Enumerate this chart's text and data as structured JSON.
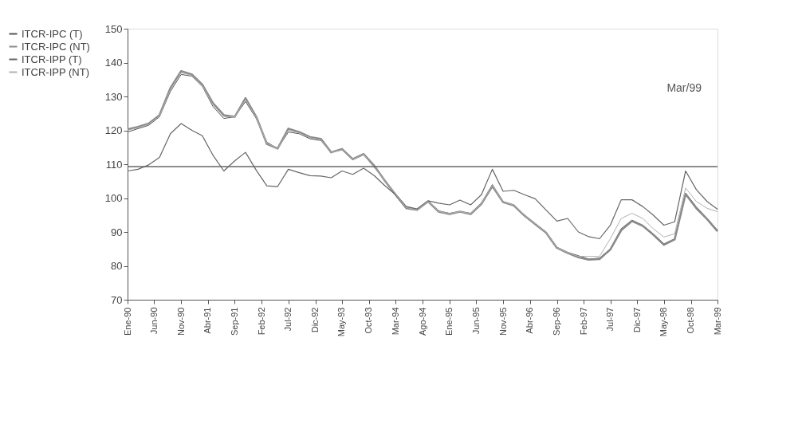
{
  "chart_data": {
    "type": "line",
    "x": [
      "1990-01",
      "1990-03",
      "1990-05",
      "1990-07",
      "1990-09",
      "1990-11",
      "1991-01",
      "1991-03",
      "1991-05",
      "1991-07",
      "1991-09",
      "1991-11",
      "1992-01",
      "1992-03",
      "1992-05",
      "1992-07",
      "1992-09",
      "1992-11",
      "1993-01",
      "1993-03",
      "1993-05",
      "1993-07",
      "1993-09",
      "1993-11",
      "1994-01",
      "1994-03",
      "1994-05",
      "1994-07",
      "1994-09",
      "1994-11",
      "1995-01",
      "1995-03",
      "1995-05",
      "1995-07",
      "1995-09",
      "1995-11",
      "1996-01",
      "1996-03",
      "1996-05",
      "1996-07",
      "1996-09",
      "1996-11",
      "1997-01",
      "1997-03",
      "1997-05",
      "1997-07",
      "1997-09",
      "1997-11",
      "1998-01",
      "1998-03",
      "1998-05",
      "1998-07",
      "1998-09",
      "1998-11",
      "1999-01",
      "1999-03"
    ],
    "series": [
      {
        "name": "ITCR-IPC (T)",
        "color": "#555555",
        "values": [
          119.5,
          120.5,
          121.5,
          124,
          131.5,
          136.5,
          136,
          133,
          127,
          123.5,
          124,
          128.5,
          123.5,
          116.5,
          114.6,
          119.5,
          119,
          117.5,
          117,
          113.5,
          114.2,
          111.3,
          112.8,
          109,
          105.2,
          101.3,
          97.5,
          96.5,
          99,
          96.2,
          95.5,
          96,
          95.5,
          98.5,
          104,
          99,
          98,
          95,
          92.5,
          90,
          85.5,
          84,
          83,
          82,
          82.3,
          85,
          91,
          93.5,
          92,
          89.5,
          86.5,
          88,
          101.5,
          97.4,
          94,
          90.5
        ]
      },
      {
        "name": "ITCR-IPC (NT)",
        "color": "#8a8a8a",
        "values": [
          120.3,
          121,
          122,
          124.5,
          132.5,
          137.5,
          136.5,
          133.5,
          128,
          124.5,
          124,
          129.5,
          124,
          116,
          114.6,
          120.5,
          119.5,
          118,
          117.5,
          113.5,
          114.5,
          111.5,
          113,
          109.5,
          105,
          101,
          97,
          96.5,
          99,
          96,
          95.3,
          96,
          95.3,
          98.3,
          103.5,
          98.8,
          97.8,
          94.8,
          92.3,
          89.8,
          85.3,
          83.8,
          82.5,
          81.8,
          82,
          84.8,
          90.5,
          93.2,
          91.8,
          89.2,
          86.2,
          87.8,
          101.2,
          97,
          93.8,
          90.2
        ]
      },
      {
        "name": "ITCR-IPP (T)",
        "color": "#666666",
        "values": [
          108,
          108.5,
          109.8,
          112,
          119,
          122,
          120,
          118.4,
          112.6,
          108,
          111,
          113.5,
          108.2,
          103.6,
          103.4,
          108.5,
          107.5,
          106.6,
          106.5,
          106,
          108,
          107,
          108.8,
          106.6,
          103.6,
          101,
          97.5,
          96.8,
          99.2,
          98.5,
          98,
          99.4,
          98,
          101,
          108.5,
          102,
          102.3,
          101,
          99.8,
          96.5,
          93.2,
          94,
          90,
          88.6,
          88,
          92,
          99.5,
          99.5,
          97.5,
          95,
          92,
          93,
          108,
          102.5,
          99,
          96.7
        ]
      },
      {
        "name": "ITCR-IPP (NT)",
        "color": "#b0b0b0",
        "values": [
          120,
          120.8,
          121.8,
          124.2,
          132,
          137,
          136.2,
          133.2,
          127.5,
          124,
          124,
          129,
          123.8,
          116.2,
          114.6,
          120,
          119.2,
          117.8,
          117.2,
          113.5,
          114.3,
          111.4,
          112.9,
          109.2,
          105.1,
          101.2,
          97.2,
          96.5,
          99,
          96.1,
          95.4,
          96,
          95.4,
          98.4,
          103.8,
          98.9,
          97.9,
          94.9,
          92.4,
          89.9,
          85.4,
          83.9,
          82.8,
          82.8,
          82.8,
          88,
          94,
          95.5,
          94,
          91,
          88.5,
          89.5,
          103,
          99,
          97,
          96
        ]
      }
    ],
    "ylim": [
      70,
      150
    ],
    "yticks": [
      70,
      80,
      90,
      100,
      110,
      120,
      130,
      140,
      150
    ],
    "xlim": [
      "1990-01",
      "1999-03"
    ],
    "xticks": [
      {
        "value": "1990-01",
        "label": "Ene-90"
      },
      {
        "value": "1990-06",
        "label": "Jun-90"
      },
      {
        "value": "1990-11",
        "label": "Nov-90"
      },
      {
        "value": "1991-04",
        "label": "Abr-91"
      },
      {
        "value": "1991-09",
        "label": "Sep-91"
      },
      {
        "value": "1992-02",
        "label": "Feb-92"
      },
      {
        "value": "1992-07",
        "label": "Jul-92"
      },
      {
        "value": "1992-12",
        "label": "Dic-92"
      },
      {
        "value": "1993-05",
        "label": "May-93"
      },
      {
        "value": "1993-10",
        "label": "Oct-93"
      },
      {
        "value": "1994-03",
        "label": "Mar-94"
      },
      {
        "value": "1994-08",
        "label": "Ago-94"
      },
      {
        "value": "1995-01",
        "label": "Ene-95"
      },
      {
        "value": "1995-06",
        "label": "Jun-95"
      },
      {
        "value": "1995-11",
        "label": "Nov-95"
      },
      {
        "value": "1996-04",
        "label": "Abr-96"
      },
      {
        "value": "1996-09",
        "label": "Sep-96"
      },
      {
        "value": "1997-02",
        "label": "Feb-97"
      },
      {
        "value": "1997-07",
        "label": "Jul-97"
      },
      {
        "value": "1997-12",
        "label": "Dic-97"
      },
      {
        "value": "1998-05",
        "label": "May-98"
      },
      {
        "value": "1998-10",
        "label": "Oct-98"
      },
      {
        "value": "1999-03",
        "label": "Mar-99"
      }
    ],
    "ref_lines": [
      {
        "axis": "y",
        "value": 109.3,
        "color": "#666666"
      }
    ],
    "annotations": [
      "Mar/99"
    ],
    "legend": "left",
    "grid": false,
    "marker": "none",
    "line_style": "solid"
  }
}
